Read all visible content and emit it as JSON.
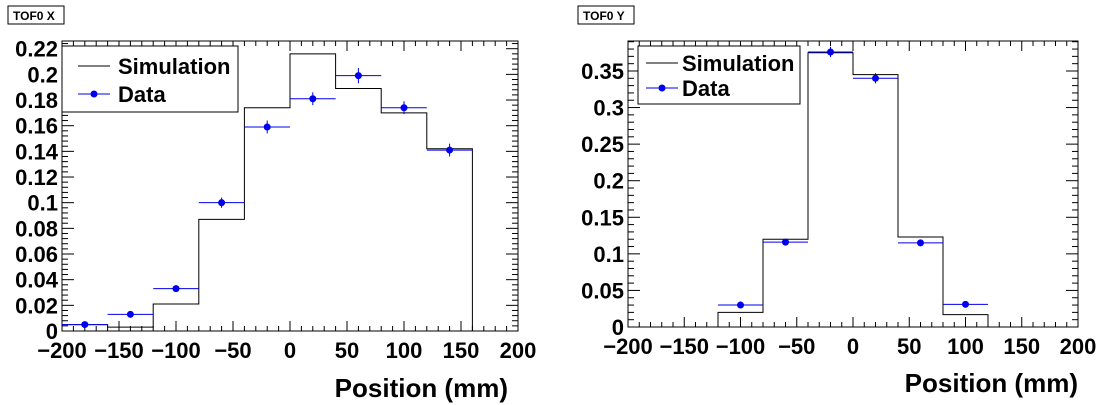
{
  "chart_data": [
    {
      "type": "histogram",
      "title": "TOF0 X",
      "xlabel": "Position (mm)",
      "ylabel": "",
      "xlim": [
        -200,
        200
      ],
      "ylim": [
        0,
        0.225
      ],
      "x_ticks": [
        -200,
        -150,
        -100,
        -50,
        0,
        50,
        100,
        150,
        200
      ],
      "x_tick_labels": [
        "−200",
        "−150",
        "−100",
        "−50",
        "0",
        "50",
        "100",
        "150",
        "200"
      ],
      "y_ticks": [
        0,
        0.02,
        0.04,
        0.06,
        0.08,
        0.1,
        0.12,
        0.14,
        0.16,
        0.18,
        0.2,
        0.22
      ],
      "y_tick_labels": [
        "0",
        "0.02",
        "0.04",
        "0.06",
        "0.08",
        "0.1",
        "0.12",
        "0.14",
        "0.16",
        "0.18",
        "0.2",
        "0.22"
      ],
      "bin_edges": [
        -200,
        -160,
        -120,
        -80,
        -40,
        0,
        40,
        80,
        120,
        160
      ],
      "series": [
        {
          "name": "Simulation",
          "kind": "step",
          "color": "#000000",
          "values": [
            0.005,
            0.003,
            0.021,
            0.087,
            0.174,
            0.216,
            0.189,
            0.17,
            0.142
          ]
        },
        {
          "name": "Data",
          "kind": "points",
          "color": "#0000ee",
          "x": [
            -180,
            -140,
            -100,
            -60,
            -20,
            20,
            60,
            100,
            140
          ],
          "values": [
            0.005,
            0.013,
            0.033,
            0.1,
            0.159,
            0.181,
            0.199,
            0.174,
            0.141
          ],
          "errors": [
            0.001,
            0.002,
            0.002,
            0.004,
            0.005,
            0.005,
            0.006,
            0.005,
            0.005
          ]
        }
      ],
      "legend_position": "top-left"
    },
    {
      "type": "histogram",
      "title": "TOF0 Y",
      "xlabel": "Position (mm)",
      "ylabel": "",
      "xlim": [
        -200,
        200
      ],
      "ylim": [
        0,
        0.39
      ],
      "x_ticks": [
        -200,
        -150,
        -100,
        -50,
        0,
        50,
        100,
        150,
        200
      ],
      "x_tick_labels": [
        "−200",
        "−150",
        "−100",
        "−50",
        "0",
        "50",
        "100",
        "150",
        "200"
      ],
      "y_ticks": [
        0,
        0.05,
        0.1,
        0.15,
        0.2,
        0.25,
        0.3,
        0.35
      ],
      "y_tick_labels": [
        "0",
        "0.05",
        "0.1",
        "0.15",
        "0.2",
        "0.25",
        "0.3",
        "0.35"
      ],
      "bin_edges": [
        -120,
        -80,
        -40,
        0,
        40,
        80,
        120
      ],
      "series": [
        {
          "name": "Simulation",
          "kind": "step",
          "color": "#000000",
          "values": [
            0.02,
            0.12,
            0.375,
            0.345,
            0.123,
            0.017
          ]
        },
        {
          "name": "Data",
          "kind": "points",
          "color": "#0000ee",
          "x": [
            -100,
            -60,
            -20,
            20,
            60,
            100
          ],
          "values": [
            0.03,
            0.116,
            0.376,
            0.34,
            0.115,
            0.031
          ],
          "errors": [
            0.002,
            0.004,
            0.007,
            0.007,
            0.004,
            0.002
          ]
        }
      ],
      "legend_position": "top-left"
    }
  ]
}
